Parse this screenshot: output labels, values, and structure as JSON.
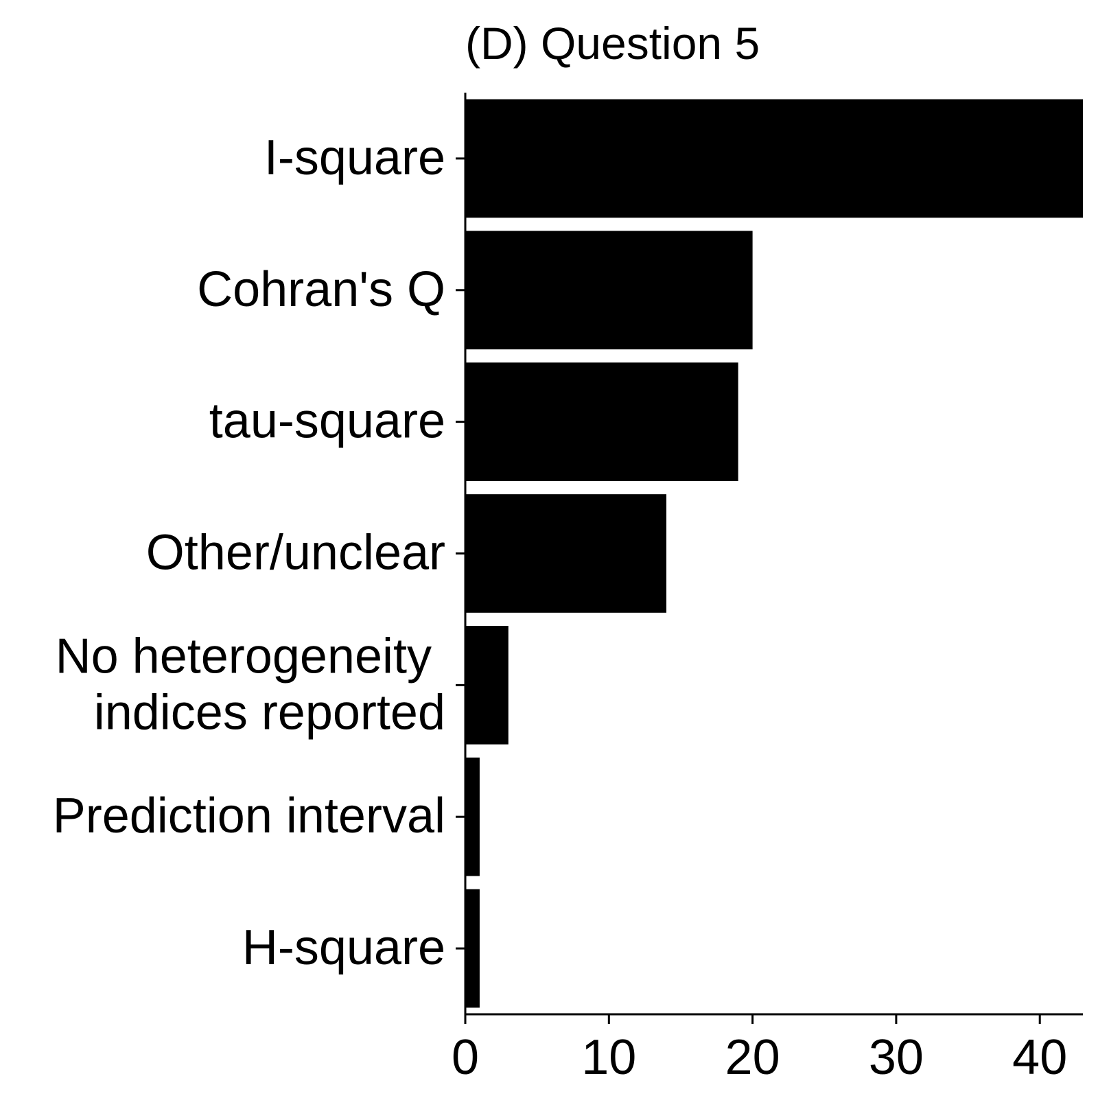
{
  "chart_data": {
    "type": "bar",
    "orientation": "horizontal",
    "title": "(D) Question 5",
    "xlabel": "",
    "ylabel": "",
    "categories": [
      [
        "I-square"
      ],
      [
        "Cohran's Q"
      ],
      [
        "tau-square"
      ],
      [
        "Other/unclear"
      ],
      [
        "No heterogeneity ",
        "indices reported"
      ],
      [
        "Prediction interval"
      ],
      [
        "H-square"
      ]
    ],
    "values": [
      43,
      20,
      19,
      14,
      3,
      1,
      1
    ],
    "xlim": [
      0,
      43
    ],
    "xticks": [
      0,
      10,
      20,
      30,
      40
    ],
    "grid": false,
    "legend": "none",
    "bar_color": "#000000",
    "axis_color": "#000000"
  }
}
